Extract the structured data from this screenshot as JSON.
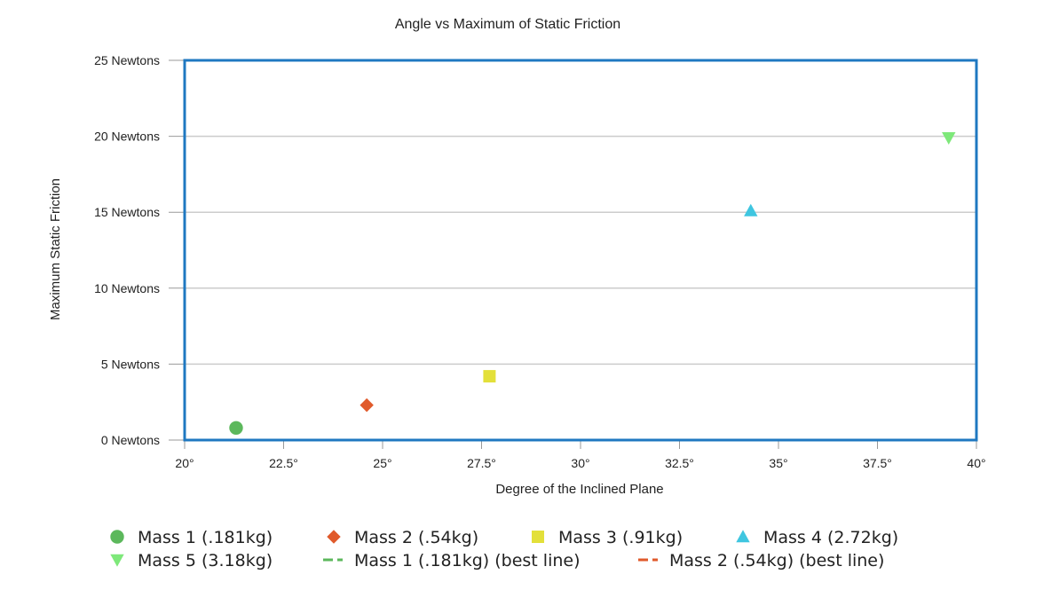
{
  "chart_data": {
    "type": "scatter",
    "title": "Angle vs Maximum of Static Friction",
    "xlabel": "Degree of the Inclined Plane",
    "ylabel": "Maximum Static Friction",
    "xlim": [
      20,
      40
    ],
    "ylim": [
      0,
      25
    ],
    "x_ticks": [
      {
        "value": 20,
        "label": "20°"
      },
      {
        "value": 22.5,
        "label": "22.5°"
      },
      {
        "value": 25,
        "label": "25°"
      },
      {
        "value": 27.5,
        "label": "27.5°"
      },
      {
        "value": 30,
        "label": "30°"
      },
      {
        "value": 32.5,
        "label": "32.5°"
      },
      {
        "value": 35,
        "label": "35°"
      },
      {
        "value": 37.5,
        "label": "37.5°"
      },
      {
        "value": 40,
        "label": "40°"
      }
    ],
    "y_ticks": [
      {
        "value": 0,
        "label": "0 Newtons"
      },
      {
        "value": 5,
        "label": "5 Newtons"
      },
      {
        "value": 10,
        "label": "10 Newtons"
      },
      {
        "value": 15,
        "label": "15 Newtons"
      },
      {
        "value": 20,
        "label": "20 Newtons"
      },
      {
        "value": 25,
        "label": "25 Newtons"
      }
    ],
    "grid": true,
    "legend_position": "bottom",
    "series": [
      {
        "name": "Mass 1 (.181kg)",
        "marker": "circle",
        "color": "#5cb85c",
        "points": [
          {
            "x": 21.3,
            "y": 0.8
          }
        ]
      },
      {
        "name": "Mass 2 (.54kg)",
        "marker": "diamond",
        "color": "#e05a2b",
        "points": [
          {
            "x": 24.6,
            "y": 2.3
          }
        ]
      },
      {
        "name": "Mass 3 (.91kg)",
        "marker": "square",
        "color": "#e3e03a",
        "points": [
          {
            "x": 27.7,
            "y": 4.2
          }
        ]
      },
      {
        "name": "Mass 4 (2.72kg)",
        "marker": "triangle-up",
        "color": "#3fc6e0",
        "points": [
          {
            "x": 34.3,
            "y": 15.1
          }
        ]
      },
      {
        "name": "Mass 5 (3.18kg)",
        "marker": "triangle-down",
        "color": "#7ee87a",
        "points": [
          {
            "x": 39.3,
            "y": 19.9
          }
        ]
      },
      {
        "name": "Mass 1 (.181kg) (best line)",
        "marker": "dash",
        "color": "#5cb85c",
        "points": []
      },
      {
        "name": "Mass 2 (.54kg) (best line)",
        "marker": "dash",
        "color": "#e05a2b",
        "points": []
      }
    ],
    "colors": {
      "plot_border": "#1f78c1",
      "grid": "#cccccc",
      "axis": "#999999"
    }
  }
}
